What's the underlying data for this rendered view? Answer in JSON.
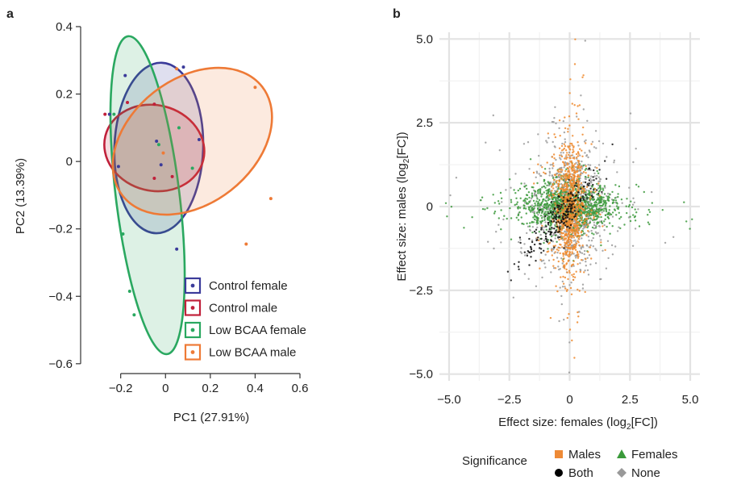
{
  "chart_data": [
    {
      "type": "scatter",
      "panel_label": "a",
      "xlabel": "PC1 (27.91%)",
      "ylabel": "PC2 (13.39%)",
      "xlim": [
        -0.35,
        0.6
      ],
      "ylim": [
        -0.61,
        0.4
      ],
      "xticks": [
        -0.2,
        0,
        0.2,
        0.4,
        0.6
      ],
      "xtick_labels": [
        "−0.2",
        "0",
        "0.2",
        "0.4",
        "0.6"
      ],
      "yticks": [
        -0.6,
        -0.4,
        -0.2,
        0,
        0.2,
        0.4
      ],
      "ytick_labels": [
        "−0.6",
        "−0.4",
        "−0.2",
        "0",
        "0.2",
        "0.4"
      ],
      "legend_position": "bottom-right",
      "grid": false,
      "series": [
        {
          "name": "Control female",
          "color": "#3b3b9a",
          "points": [
            [
              -0.18,
              0.255
            ],
            [
              -0.21,
              -0.015
            ],
            [
              0.08,
              0.28
            ],
            [
              -0.04,
              0.06
            ],
            [
              -0.02,
              -0.01
            ],
            [
              0.15,
              0.065
            ],
            [
              0.05,
              -0.26
            ],
            [
              -0.25,
              0.14
            ]
          ],
          "ellipse": {
            "cx": -0.03,
            "cy": 0.04,
            "rx": 0.198,
            "ry": 0.253,
            "angle": -2
          }
        },
        {
          "name": "Control male",
          "color": "#c0203a",
          "points": [
            [
              -0.27,
              0.14
            ],
            [
              -0.05,
              0.17
            ],
            [
              -0.05,
              -0.05
            ],
            [
              0.03,
              -0.045
            ],
            [
              -0.17,
              0.175
            ]
          ],
          "ellipse": {
            "cx": -0.05,
            "cy": 0.04,
            "rx": 0.225,
            "ry": 0.127,
            "angle": -14
          }
        },
        {
          "name": "Low BCAA female",
          "color": "#2aa860",
          "points": [
            [
              0.06,
              0.1
            ],
            [
              0.12,
              -0.02
            ],
            [
              -0.19,
              -0.215
            ],
            [
              -0.16,
              -0.385
            ],
            [
              -0.14,
              -0.455
            ],
            [
              -0.23,
              0.14
            ],
            [
              -0.03,
              0.05
            ]
          ],
          "ellipse": {
            "cx": -0.08,
            "cy": -0.1,
            "rx": 0.142,
            "ry": 0.475,
            "angle": 7
          }
        },
        {
          "name": "Low BCAA male",
          "color": "#ee7a36",
          "points": [
            [
              0.05,
              0.275
            ],
            [
              0.4,
              0.22
            ],
            [
              0.47,
              -0.11
            ],
            [
              0.36,
              -0.245
            ],
            [
              -0.01,
              0.025
            ]
          ],
          "ellipse": {
            "cx": 0.12,
            "cy": 0.06,
            "rx": 0.395,
            "ry": 0.185,
            "angle": 38
          }
        }
      ]
    },
    {
      "type": "scatter",
      "panel_label": "b",
      "xlabel_parts": [
        "Effect size: females (log",
        "2",
        "[FC])"
      ],
      "ylabel_parts": [
        "Effect size: males (log",
        "2",
        "[FC])"
      ],
      "xlim": [
        -5.4,
        5.4
      ],
      "ylim": [
        -5.2,
        5.2
      ],
      "xticks": [
        -5,
        -2.5,
        0,
        2.5,
        5
      ],
      "xtick_labels": [
        "−5.0",
        "−2.5",
        "0",
        "2.5",
        "5.0"
      ],
      "yticks": [
        -5,
        -2.5,
        0,
        2.5,
        5
      ],
      "ytick_labels": [
        "−5.0",
        "−2.5",
        "0",
        "2.5",
        "5.0"
      ],
      "grid": true,
      "legend_title": "Significance",
      "legend_position": "bottom",
      "legend": [
        {
          "name": "Males",
          "color": "#ee8a36",
          "marker": "square"
        },
        {
          "name": "Females",
          "color": "#3a9a3a",
          "marker": "triangle"
        },
        {
          "name": "Both",
          "color": "#000000",
          "marker": "circle"
        },
        {
          "name": "None",
          "color": "#999999",
          "marker": "diamond"
        }
      ],
      "series": [
        {
          "name": "None",
          "color": "#9a9a9a",
          "center": [
            0,
            0
          ],
          "spread": [
            0.75,
            0.85
          ],
          "count": 900
        },
        {
          "name": "Females",
          "color": "#3d9a3d",
          "center": [
            0,
            0
          ],
          "spread": [
            0.95,
            0.32
          ],
          "count": 1100
        },
        {
          "name": "Males",
          "color": "#ef8a2e",
          "center": [
            0,
            0
          ],
          "spread": [
            0.28,
            0.9
          ],
          "count": 900
        },
        {
          "name": "Both",
          "color": "#111111",
          "center": [
            0,
            0
          ],
          "spread": [
            0.38,
            0.32
          ],
          "correlation": 0.9,
          "count": 220
        }
      ]
    }
  ]
}
